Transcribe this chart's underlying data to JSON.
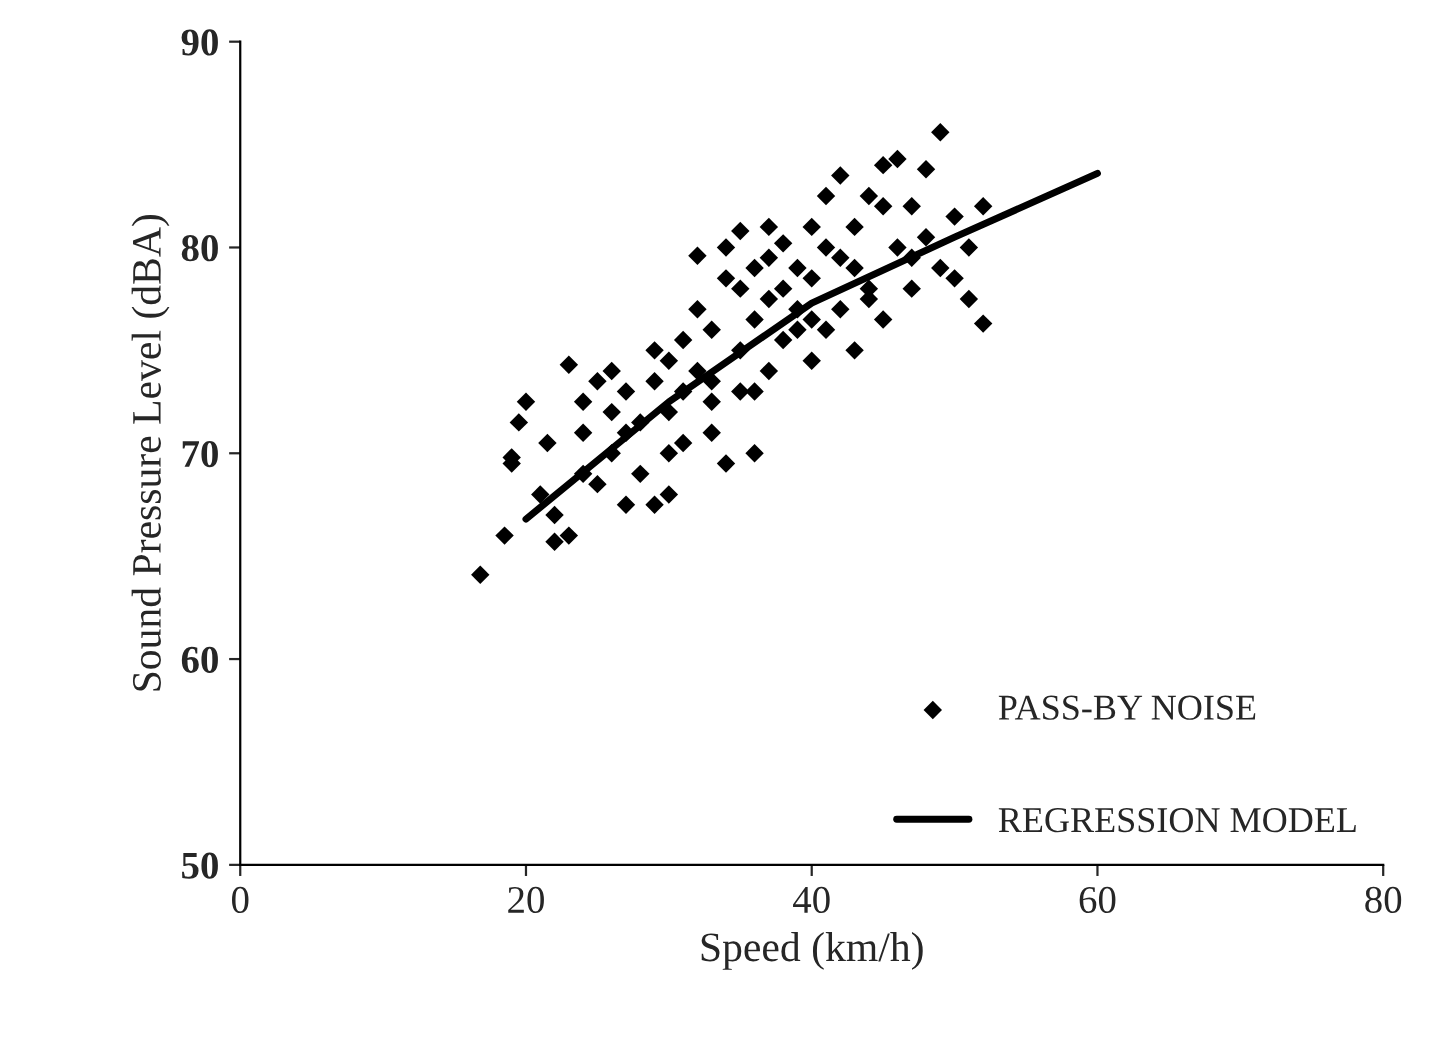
{
  "chart_data": {
    "type": "scatter",
    "xlabel": "Speed (km/h)",
    "ylabel": "Sound Pressure Level (dBA)",
    "xlim": [
      0,
      80
    ],
    "ylim": [
      50,
      90
    ],
    "xticks": [
      0,
      20,
      40,
      60,
      80
    ],
    "yticks": [
      50,
      60,
      70,
      80,
      90
    ],
    "grid": false,
    "legend": "bottom right",
    "series": [
      {
        "name": "PASS-BY NOISE",
        "marker": "diamond",
        "color": "#000000",
        "x": [
          16.8,
          18.5,
          19,
          19,
          19.5,
          20,
          21,
          21.5,
          22,
          23,
          23,
          24,
          24,
          25,
          25,
          26,
          26,
          27,
          27,
          28,
          28,
          29,
          29,
          30,
          30,
          30,
          31,
          31,
          32,
          32,
          32,
          33,
          33,
          33,
          34,
          34,
          35,
          35,
          35,
          36,
          36,
          36,
          37,
          37,
          37,
          38,
          38,
          39,
          39,
          39,
          40,
          40,
          40,
          41,
          41,
          42,
          42,
          42,
          43,
          43,
          44,
          44,
          45,
          45,
          46,
          46,
          47,
          47,
          48,
          48,
          49,
          49,
          50,
          50,
          51,
          51,
          52,
          52,
          27,
          31,
          34,
          38,
          44,
          41,
          36,
          29,
          26,
          22,
          24,
          35,
          40,
          43,
          47,
          33,
          30,
          37,
          45
        ],
        "values": [
          64.1,
          66,
          69.8,
          69.5,
          71.5,
          72.5,
          68,
          70.5,
          65.7,
          66,
          74.3,
          71,
          69,
          73.5,
          68.5,
          72,
          70,
          67.5,
          73,
          69,
          71.5,
          75,
          67.5,
          74.5,
          72,
          68,
          73,
          70.5,
          79.6,
          77,
          74,
          71,
          72.5,
          76,
          69.5,
          78.5,
          73,
          80.8,
          75,
          70,
          79,
          76.5,
          81,
          77.5,
          74,
          78,
          80.2,
          76,
          79,
          77,
          74.5,
          81,
          78.5,
          76,
          80,
          83.5,
          77,
          79.5,
          75,
          81,
          78,
          82.5,
          84,
          76.5,
          80,
          84.3,
          82,
          78,
          83.8,
          80.5,
          85.6,
          79,
          81.5,
          78.5,
          80,
          77.5,
          76.3,
          82,
          71,
          75.5,
          80,
          75.5,
          77.5,
          82.5,
          73,
          73.5,
          74,
          67,
          72.5,
          78,
          76.5,
          79,
          79.5,
          73.5,
          70,
          79.5,
          82
        ]
      },
      {
        "name": "REGRESSION MODEL",
        "type": "line",
        "line_style": "solid",
        "color": "#000000",
        "x": [
          20,
          30,
          40,
          50,
          60
        ],
        "values": [
          66.8,
          72.5,
          77.3,
          80.5,
          83.6
        ]
      }
    ]
  }
}
